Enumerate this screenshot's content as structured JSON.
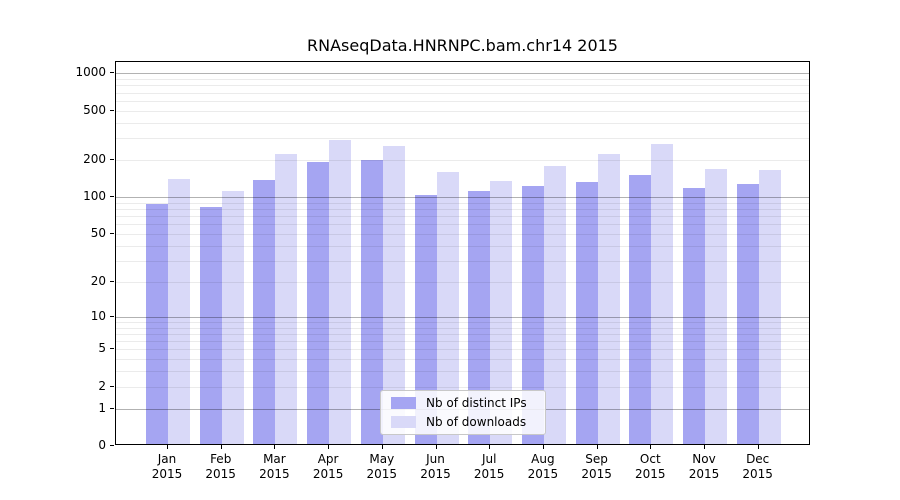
{
  "title": "RNAseqData.HNRNPC.bam.chr14 2015",
  "chart_data": {
    "type": "bar",
    "title": "RNAseqData.HNRNPC.bam.chr14 2015",
    "categories": [
      "Jan",
      "Feb",
      "Mar",
      "Apr",
      "May",
      "Jun",
      "Jul",
      "Aug",
      "Sep",
      "Oct",
      "Nov",
      "Dec"
    ],
    "year_label": "2015",
    "series": [
      {
        "name": "Nb of distinct IPs",
        "color": "#a5a5f2",
        "values": [
          84,
          80,
          133,
          184,
          192,
          100,
          109,
          118,
          127,
          146,
          114,
          123
        ]
      },
      {
        "name": "Nb of downloads",
        "color": "#d9d9f8",
        "values": [
          135,
          108,
          216,
          279,
          251,
          155,
          131,
          171,
          214,
          258,
          163,
          161
        ]
      }
    ],
    "xlabel": "",
    "ylabel": "",
    "y_scale": "log10(1+x)",
    "y_ticks": [
      1000,
      500,
      200,
      100,
      50,
      20,
      10,
      5,
      2,
      1,
      0
    ],
    "y_major_gridlines": [
      1,
      10,
      100,
      1000
    ],
    "y_minor_gridlines": [
      2,
      3,
      4,
      5,
      6,
      7,
      8,
      9,
      20,
      30,
      40,
      50,
      60,
      70,
      80,
      90,
      200,
      300,
      400,
      500,
      600,
      700,
      800,
      900
    ],
    "ylim": [
      0,
      1220
    ],
    "grid": true,
    "legend_position": "lower center inside plot"
  },
  "colors": {
    "background": "#ffffff",
    "frame": "#000000",
    "major_grid": "#b3b3b3",
    "minor_grid": "#eaeaea",
    "legend_border": "#c8c8c8"
  }
}
